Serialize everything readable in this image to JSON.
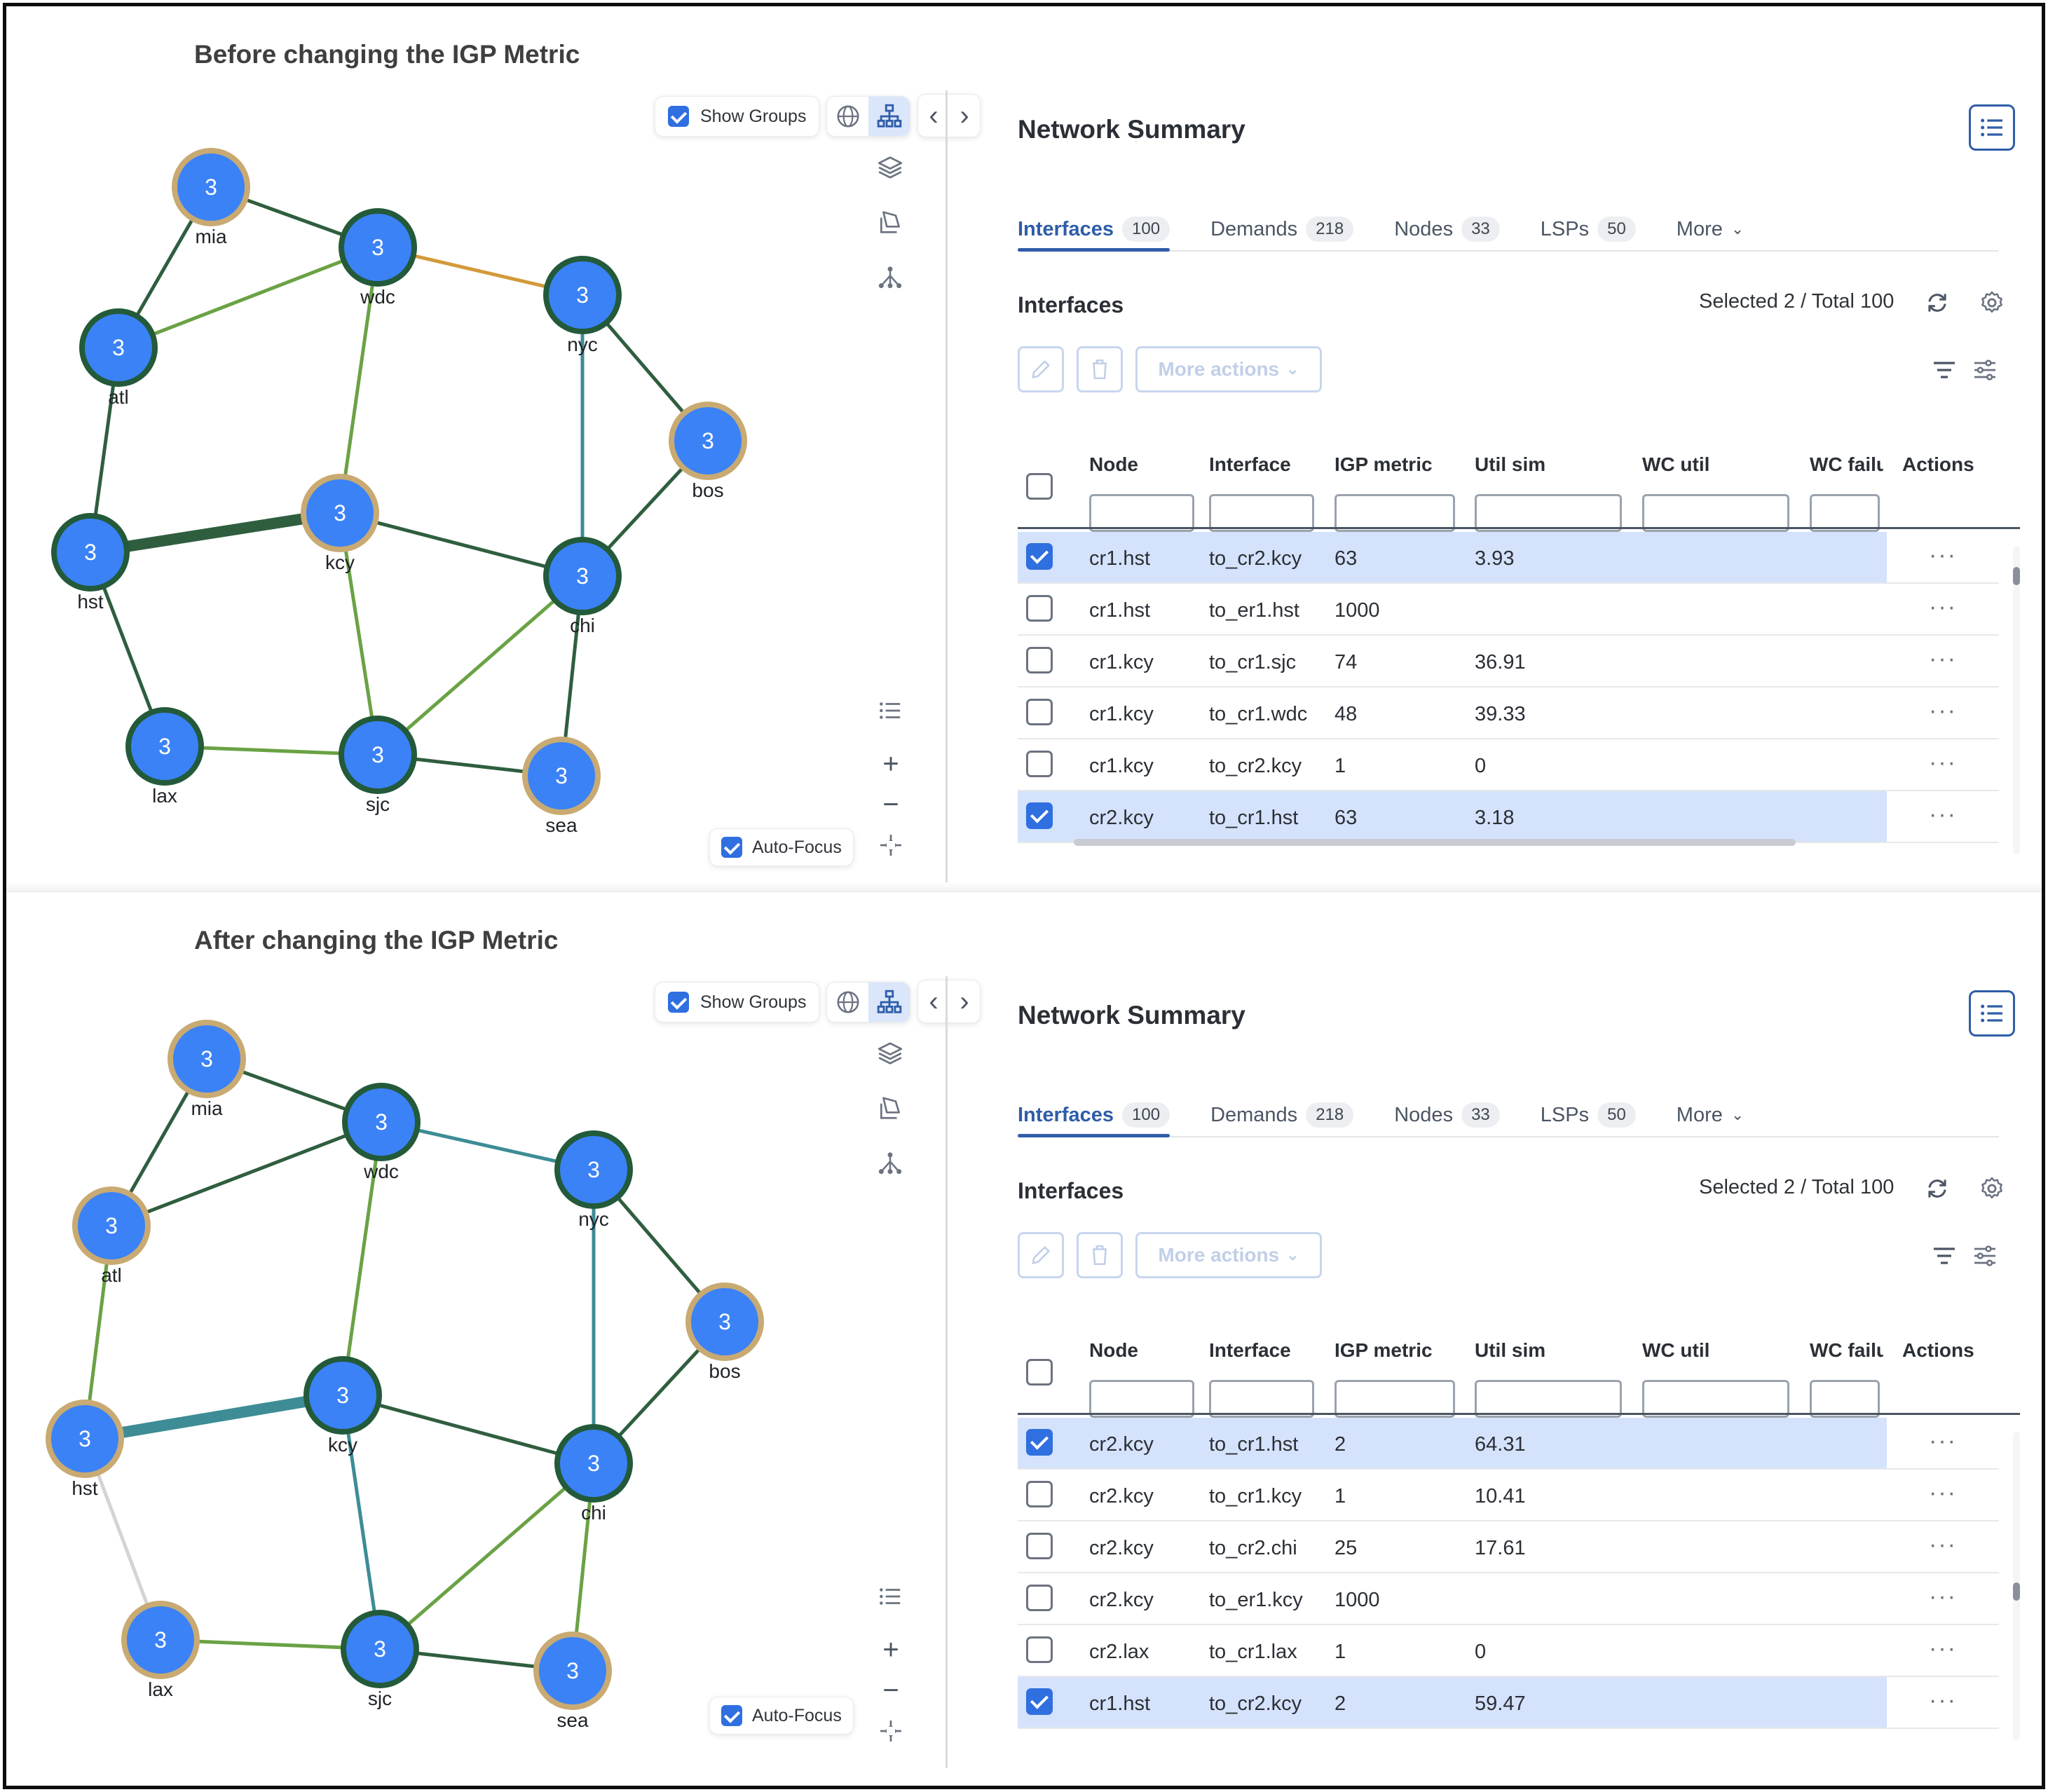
{
  "panels": [
    {
      "title": "Before changing the IGP Metric",
      "graph": {
        "show_groups_label": "Show Groups",
        "auto_focus_label": "Auto-Focus",
        "nodes": [
          {
            "id": "mia",
            "count": "3",
            "ring": "tan"
          },
          {
            "id": "wdc",
            "count": "3",
            "ring": "green"
          },
          {
            "id": "nyc",
            "count": "3",
            "ring": "green"
          },
          {
            "id": "atl",
            "count": "3",
            "ring": "green"
          },
          {
            "id": "bos",
            "count": "3",
            "ring": "tan"
          },
          {
            "id": "hst",
            "count": "3",
            "ring": "green"
          },
          {
            "id": "kcy",
            "count": "3",
            "ring": "tan"
          },
          {
            "id": "chi",
            "count": "3",
            "ring": "green"
          },
          {
            "id": "lax",
            "count": "3",
            "ring": "green"
          },
          {
            "id": "sjc",
            "count": "3",
            "ring": "green"
          },
          {
            "id": "sea",
            "count": "3",
            "ring": "tan"
          }
        ]
      },
      "summary": {
        "title": "Network Summary",
        "tabs": [
          {
            "label": "Interfaces",
            "count": "100"
          },
          {
            "label": "Demands",
            "count": "218"
          },
          {
            "label": "Nodes",
            "count": "33"
          },
          {
            "label": "LSPs",
            "count": "50"
          },
          {
            "label": "More",
            "count": ""
          }
        ],
        "section_title": "Interfaces",
        "selection": "Selected 2 / Total 100",
        "more_actions": "More actions",
        "columns": [
          "Node",
          "Interface",
          "IGP metric",
          "Util sim",
          "WC util",
          "WC failu",
          "Actions"
        ],
        "rows": [
          {
            "selected": true,
            "node": "cr1.hst",
            "interface": "to_cr2.kcy",
            "igp": "63",
            "util": "3.93",
            "actions": "···"
          },
          {
            "selected": false,
            "node": "cr1.hst",
            "interface": "to_er1.hst",
            "igp": "1000",
            "util": "",
            "actions": "···"
          },
          {
            "selected": false,
            "node": "cr1.kcy",
            "interface": "to_cr1.sjc",
            "igp": "74",
            "util": "36.91",
            "actions": "···"
          },
          {
            "selected": false,
            "node": "cr1.kcy",
            "interface": "to_cr1.wdc",
            "igp": "48",
            "util": "39.33",
            "actions": "···"
          },
          {
            "selected": false,
            "node": "cr1.kcy",
            "interface": "to_cr2.kcy",
            "igp": "1",
            "util": "0",
            "actions": "···"
          },
          {
            "selected": true,
            "node": "cr2.kcy",
            "interface": "to_cr1.hst",
            "igp": "63",
            "util": "3.18",
            "actions": "···"
          }
        ]
      }
    },
    {
      "title": "After changing the IGP Metric",
      "graph": {
        "show_groups_label": "Show Groups",
        "auto_focus_label": "Auto-Focus",
        "nodes": [
          {
            "id": "mia",
            "count": "3",
            "ring": "tan"
          },
          {
            "id": "wdc",
            "count": "3",
            "ring": "green"
          },
          {
            "id": "nyc",
            "count": "3",
            "ring": "green"
          },
          {
            "id": "atl",
            "count": "3",
            "ring": "tan"
          },
          {
            "id": "bos",
            "count": "3",
            "ring": "tan"
          },
          {
            "id": "hst",
            "count": "3",
            "ring": "tan"
          },
          {
            "id": "kcy",
            "count": "3",
            "ring": "green"
          },
          {
            "id": "chi",
            "count": "3",
            "ring": "green"
          },
          {
            "id": "lax",
            "count": "3",
            "ring": "tan"
          },
          {
            "id": "sjc",
            "count": "3",
            "ring": "green"
          },
          {
            "id": "sea",
            "count": "3",
            "ring": "tan"
          }
        ]
      },
      "summary": {
        "title": "Network Summary",
        "tabs": [
          {
            "label": "Interfaces",
            "count": "100"
          },
          {
            "label": "Demands",
            "count": "218"
          },
          {
            "label": "Nodes",
            "count": "33"
          },
          {
            "label": "LSPs",
            "count": "50"
          },
          {
            "label": "More",
            "count": ""
          }
        ],
        "section_title": "Interfaces",
        "selection": "Selected 2 / Total 100",
        "more_actions": "More actions",
        "columns": [
          "Node",
          "Interface",
          "IGP metric",
          "Util sim",
          "WC util",
          "WC failu",
          "Actions"
        ],
        "rows": [
          {
            "selected": true,
            "node": "cr2.kcy",
            "interface": "to_cr1.hst",
            "igp": "2",
            "util": "64.31",
            "actions": "···"
          },
          {
            "selected": false,
            "node": "cr2.kcy",
            "interface": "to_cr1.kcy",
            "igp": "1",
            "util": "10.41",
            "actions": "···"
          },
          {
            "selected": false,
            "node": "cr2.kcy",
            "interface": "to_cr2.chi",
            "igp": "25",
            "util": "17.61",
            "actions": "···"
          },
          {
            "selected": false,
            "node": "cr2.kcy",
            "interface": "to_er1.kcy",
            "igp": "1000",
            "util": "",
            "actions": "···"
          },
          {
            "selected": false,
            "node": "cr2.lax",
            "interface": "to_cr1.lax",
            "igp": "1",
            "util": "0",
            "actions": "···"
          },
          {
            "selected": true,
            "node": "cr1.hst",
            "interface": "to_cr2.kcy",
            "igp": "2",
            "util": "59.47",
            "actions": "···"
          }
        ]
      }
    }
  ],
  "colors": {
    "node_fill": "#3b82f6",
    "ring_green": "#235a3a",
    "ring_tan": "#c8aa72",
    "link_dark": "#2f5e3f",
    "link_green": "#6aa244",
    "link_teal": "#3d8c96",
    "link_orange": "#d39a3a",
    "link_gray": "#d4d4d4",
    "accent": "#2f5da8",
    "selected_row": "#d5e2fb"
  }
}
